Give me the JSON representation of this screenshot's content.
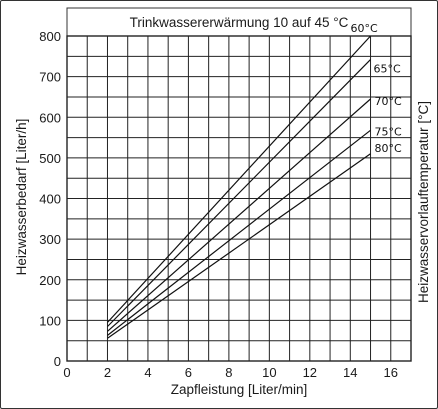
{
  "chart_data": {
    "type": "line",
    "title": "Trinkwassererwärmung 10 auf 45 °C",
    "xlabel": "Zapfleistung [Liter/min]",
    "ylabel": "Heizwasserbedarf [Liter/h]",
    "y2label": "Heizwasservorlauftemperatur [°C]",
    "xlim": [
      0,
      17
    ],
    "ylim": [
      0,
      800
    ],
    "xticks": [
      "0",
      "2",
      "4",
      "6",
      "8",
      "10",
      "12",
      "14",
      "16"
    ],
    "yticks": [
      "0",
      "100",
      "200",
      "300",
      "400",
      "500",
      "600",
      "700",
      "800"
    ],
    "grid": true,
    "legend": "inline labels at line ends",
    "series": [
      {
        "name": "60°C",
        "points": [
          [
            2,
            95
          ],
          [
            15,
            800
          ]
        ]
      },
      {
        "name": "65°C",
        "points": [
          [
            2,
            85
          ],
          [
            15,
            742
          ]
        ]
      },
      {
        "name": "70°C",
        "points": [
          [
            2,
            73
          ],
          [
            15,
            645
          ]
        ]
      },
      {
        "name": "75°C",
        "points": [
          [
            2,
            63
          ],
          [
            15,
            568
          ]
        ]
      },
      {
        "name": "80°C",
        "points": [
          [
            2,
            56
          ],
          [
            15,
            510
          ]
        ]
      }
    ]
  }
}
